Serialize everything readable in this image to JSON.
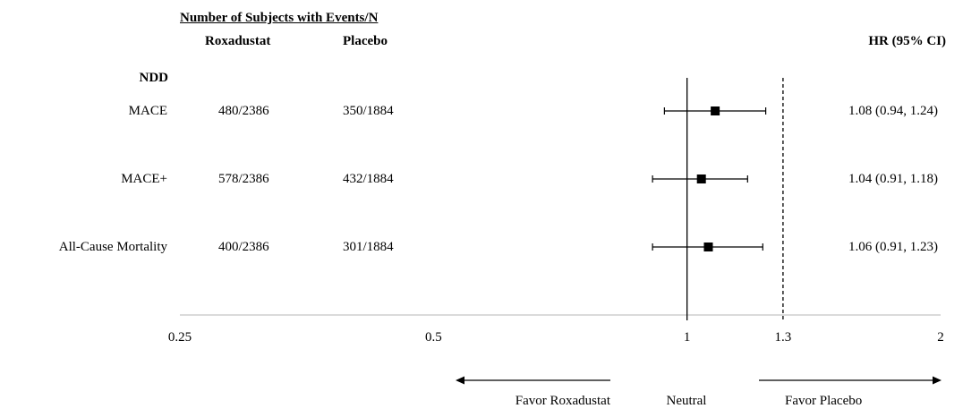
{
  "header": {
    "span_title": "Number of Subjects with Events/N",
    "col_roxadustat": "Roxadustat",
    "col_placebo": "Placebo",
    "col_hr": "HR (95% CI)"
  },
  "group_label": "NDD",
  "rows": [
    {
      "label": "MACE",
      "roxadustat": "480/2386",
      "placebo": "350/1884",
      "hr_text": "1.08 (0.94, 1.24)"
    },
    {
      "label": "MACE+",
      "roxadustat": "578/2386",
      "placebo": "432/1884",
      "hr_text": "1.04 (0.91, 1.18)"
    },
    {
      "label": "All-Cause Mortality",
      "roxadustat": "400/2386",
      "placebo": "301/1884",
      "hr_text": "1.06 (0.91, 1.23)"
    }
  ],
  "direction_labels": {
    "left": "Favor Roxadustat",
    "center": "Neutral",
    "right": "Favor Placebo"
  },
  "chart_data": {
    "type": "scatter",
    "subtype": "forest",
    "x_scale": "log",
    "xlim": [
      0.25,
      2
    ],
    "x_ticks": [
      "0.25",
      "0.5",
      "1",
      "1.3",
      "2"
    ],
    "reference_lines": [
      {
        "x": 1,
        "style": "solid"
      },
      {
        "x": 1.3,
        "style": "dashed"
      }
    ],
    "categories": [
      "MACE",
      "MACE+",
      "All-Cause Mortality"
    ],
    "estimates": [
      1.08,
      1.04,
      1.06
    ],
    "ci_lower": [
      0.94,
      0.91,
      0.91
    ],
    "ci_upper": [
      1.24,
      1.18,
      1.23
    ]
  }
}
